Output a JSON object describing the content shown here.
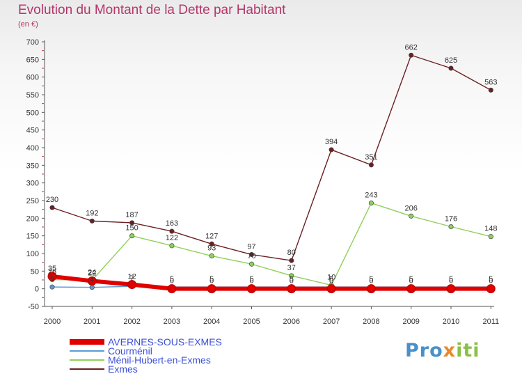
{
  "title": "Evolution du Montant de la Dette par Habitant",
  "subtitle": "(en €)",
  "logo": {
    "part1": "Pro",
    "part2": "x",
    "part3": "iti"
  },
  "chart_data": {
    "type": "line",
    "title": "Evolution du Montant de la Dette par Habitant",
    "ylabel": "(en €)",
    "ylim": [
      -50,
      700
    ],
    "yticks": [
      "-50",
      "0",
      "50",
      "100",
      "150",
      "200",
      "250",
      "300",
      "350",
      "400",
      "450",
      "500",
      "550",
      "600",
      "650",
      "700"
    ],
    "categories": [
      "2000",
      "2001",
      "2002",
      "2003",
      "2004",
      "2005",
      "2006",
      "2007",
      "2008",
      "2009",
      "2010",
      "2011"
    ],
    "grid": false,
    "legend_position": "bottom-left",
    "series": [
      {
        "name": "AVERNES-SOUS-EXMES",
        "color": "#e00000",
        "values": [
          35,
          22,
          12,
          0,
          0,
          0,
          0,
          0,
          0,
          0,
          0,
          0
        ],
        "labels": [
          "35",
          "22",
          "12",
          "0",
          "0",
          "0",
          "0",
          "0",
          "0",
          "0",
          "0",
          "0"
        ]
      },
      {
        "name": "Courménil",
        "color": "#5a9bd5",
        "values": [
          5,
          4,
          7,
          5,
          5,
          5,
          5,
          5,
          5,
          5,
          5,
          5
        ],
        "labels": [
          "5",
          "4",
          "7",
          "5",
          "5",
          "5",
          "5",
          "5",
          "5",
          "5",
          "5",
          "5"
        ]
      },
      {
        "name": "Ménil-Hubert-en-Exmes",
        "color": "#8fd05c",
        "values": [
          26,
          24,
          150,
          122,
          93,
          70,
          37,
          10,
          243,
          206,
          176,
          148
        ],
        "labels": [
          "26",
          "24",
          "150",
          "122",
          "93",
          "70",
          "37",
          "10",
          "243",
          "206",
          "176",
          "148"
        ]
      },
      {
        "name": "Exmes",
        "color": "#6b1f22",
        "values": [
          230,
          192,
          187,
          163,
          127,
          97,
          80,
          394,
          351,
          662,
          625,
          563
        ],
        "labels": [
          "230",
          "192",
          "187",
          "163",
          "127",
          "97",
          "80",
          "394",
          "351",
          "662",
          "625",
          "563"
        ]
      }
    ]
  }
}
